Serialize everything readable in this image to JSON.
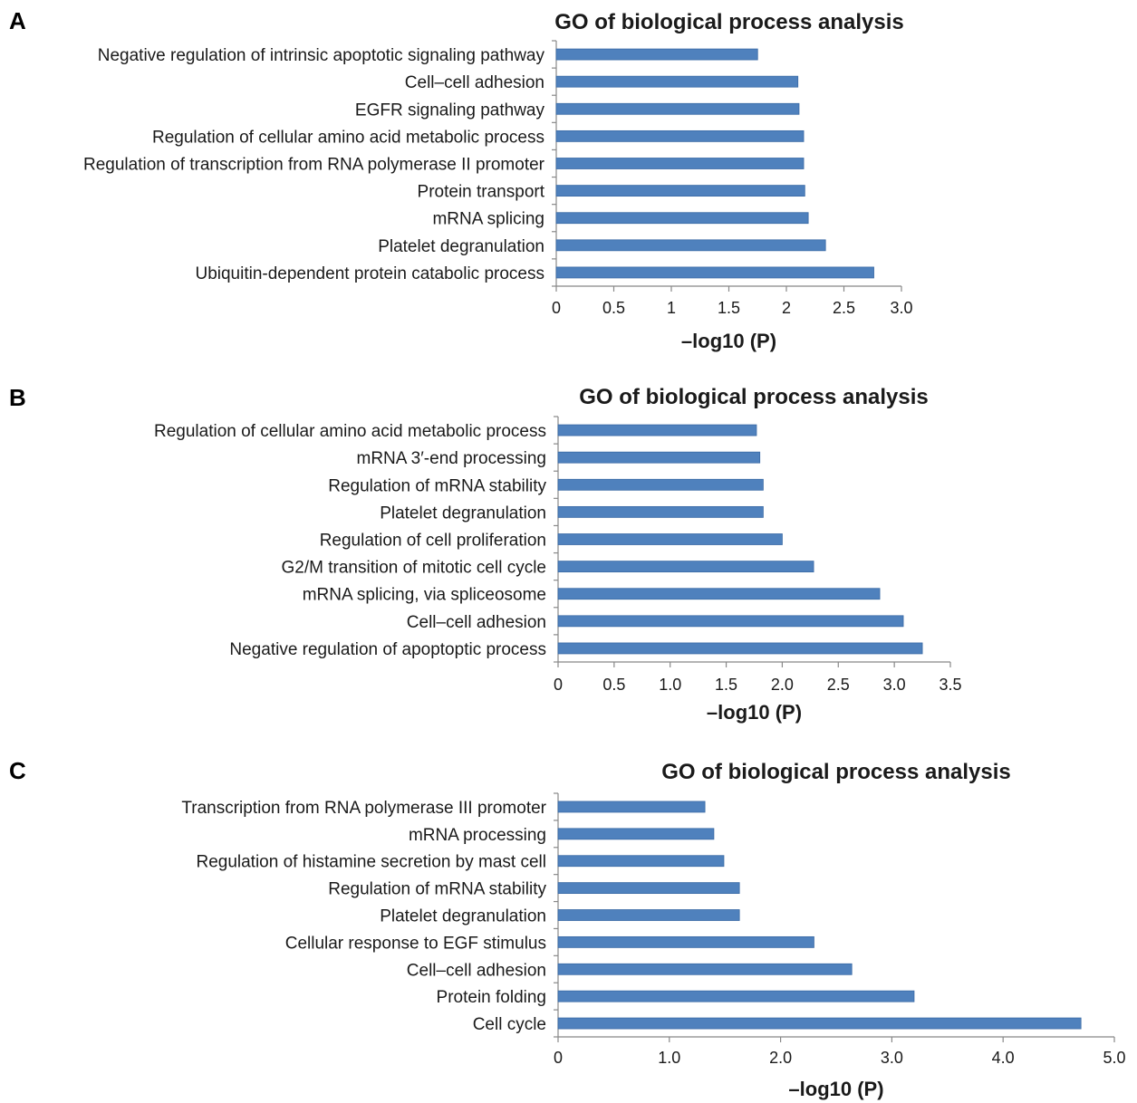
{
  "chart_data": [
    {
      "panel": "A",
      "type": "bar",
      "orientation": "horizontal",
      "title": "GO of biological process analysis",
      "xlabel": "–log10 (P)",
      "ylabel": "",
      "xlim": [
        0,
        3.0
      ],
      "ticks": [
        0,
        0.5,
        1,
        1.5,
        2,
        2.5,
        3.0
      ],
      "tick_labels": [
        "0",
        "0.5",
        "1",
        "1.5",
        "2",
        "2.5",
        "3.0"
      ],
      "categories": [
        "Negative regulation of intrinsic apoptotic signaling pathway",
        "Cell–cell adhesion",
        "EGFR signaling pathway",
        "Regulation of cellular amino acid metabolic process",
        "Regulation of transcription from RNA polymerase II promoter",
        "Protein transport",
        "mRNA splicing",
        "Platelet degranulation",
        "Ubiquitin-dependent protein catabolic process"
      ],
      "values": [
        1.75,
        2.1,
        2.11,
        2.15,
        2.15,
        2.16,
        2.19,
        2.34,
        2.76
      ]
    },
    {
      "panel": "B",
      "type": "bar",
      "orientation": "horizontal",
      "title": "GO of biological process analysis",
      "xlabel": "–log10 (P)",
      "ylabel": "",
      "xlim": [
        0,
        3.5
      ],
      "ticks": [
        0,
        0.5,
        1.0,
        1.5,
        2.0,
        2.5,
        3.0,
        3.5
      ],
      "tick_labels": [
        "0",
        "0.5",
        "1.0",
        "1.5",
        "2.0",
        "2.5",
        "3.0",
        "3.5"
      ],
      "categories": [
        "Regulation of cellular amino acid metabolic process",
        "mRNA 3′-end processing",
        "Regulation of mRNA stability",
        "Platelet degranulation",
        "Regulation of cell proliferation",
        "G2/M transition of mitotic cell cycle",
        "mRNA splicing, via spliceosome",
        "Cell–cell adhesion",
        "Negative regulation of apoptoptic process"
      ],
      "values": [
        1.77,
        1.8,
        1.83,
        1.83,
        2.0,
        2.28,
        2.87,
        3.08,
        3.25
      ]
    },
    {
      "panel": "C",
      "type": "bar",
      "orientation": "horizontal",
      "title": "GO of biological process analysis",
      "xlabel": "–log10 (P)",
      "ylabel": "",
      "xlim": [
        0,
        5.0
      ],
      "ticks": [
        0,
        1.0,
        2.0,
        3.0,
        4.0,
        5.0
      ],
      "tick_labels": [
        "0",
        "1.0",
        "2.0",
        "3.0",
        "4.0",
        "5.0"
      ],
      "categories": [
        "Transcription from RNA polymerase III promoter",
        "mRNA processing",
        "Regulation of histamine secretion by mast cell",
        "Regulation of mRNA stability",
        "Platelet degranulation",
        "Cellular response to EGF stimulus",
        "Cell–cell adhesion",
        "Protein folding",
        "Cell cycle"
      ],
      "values": [
        1.32,
        1.4,
        1.49,
        1.63,
        1.63,
        2.3,
        2.64,
        3.2,
        4.7
      ]
    }
  ],
  "colors": {
    "bar_fill": "#4f81bd",
    "bar_stroke": "#3a6aa5",
    "axis": "#888888",
    "text": "#1a1a1a"
  }
}
